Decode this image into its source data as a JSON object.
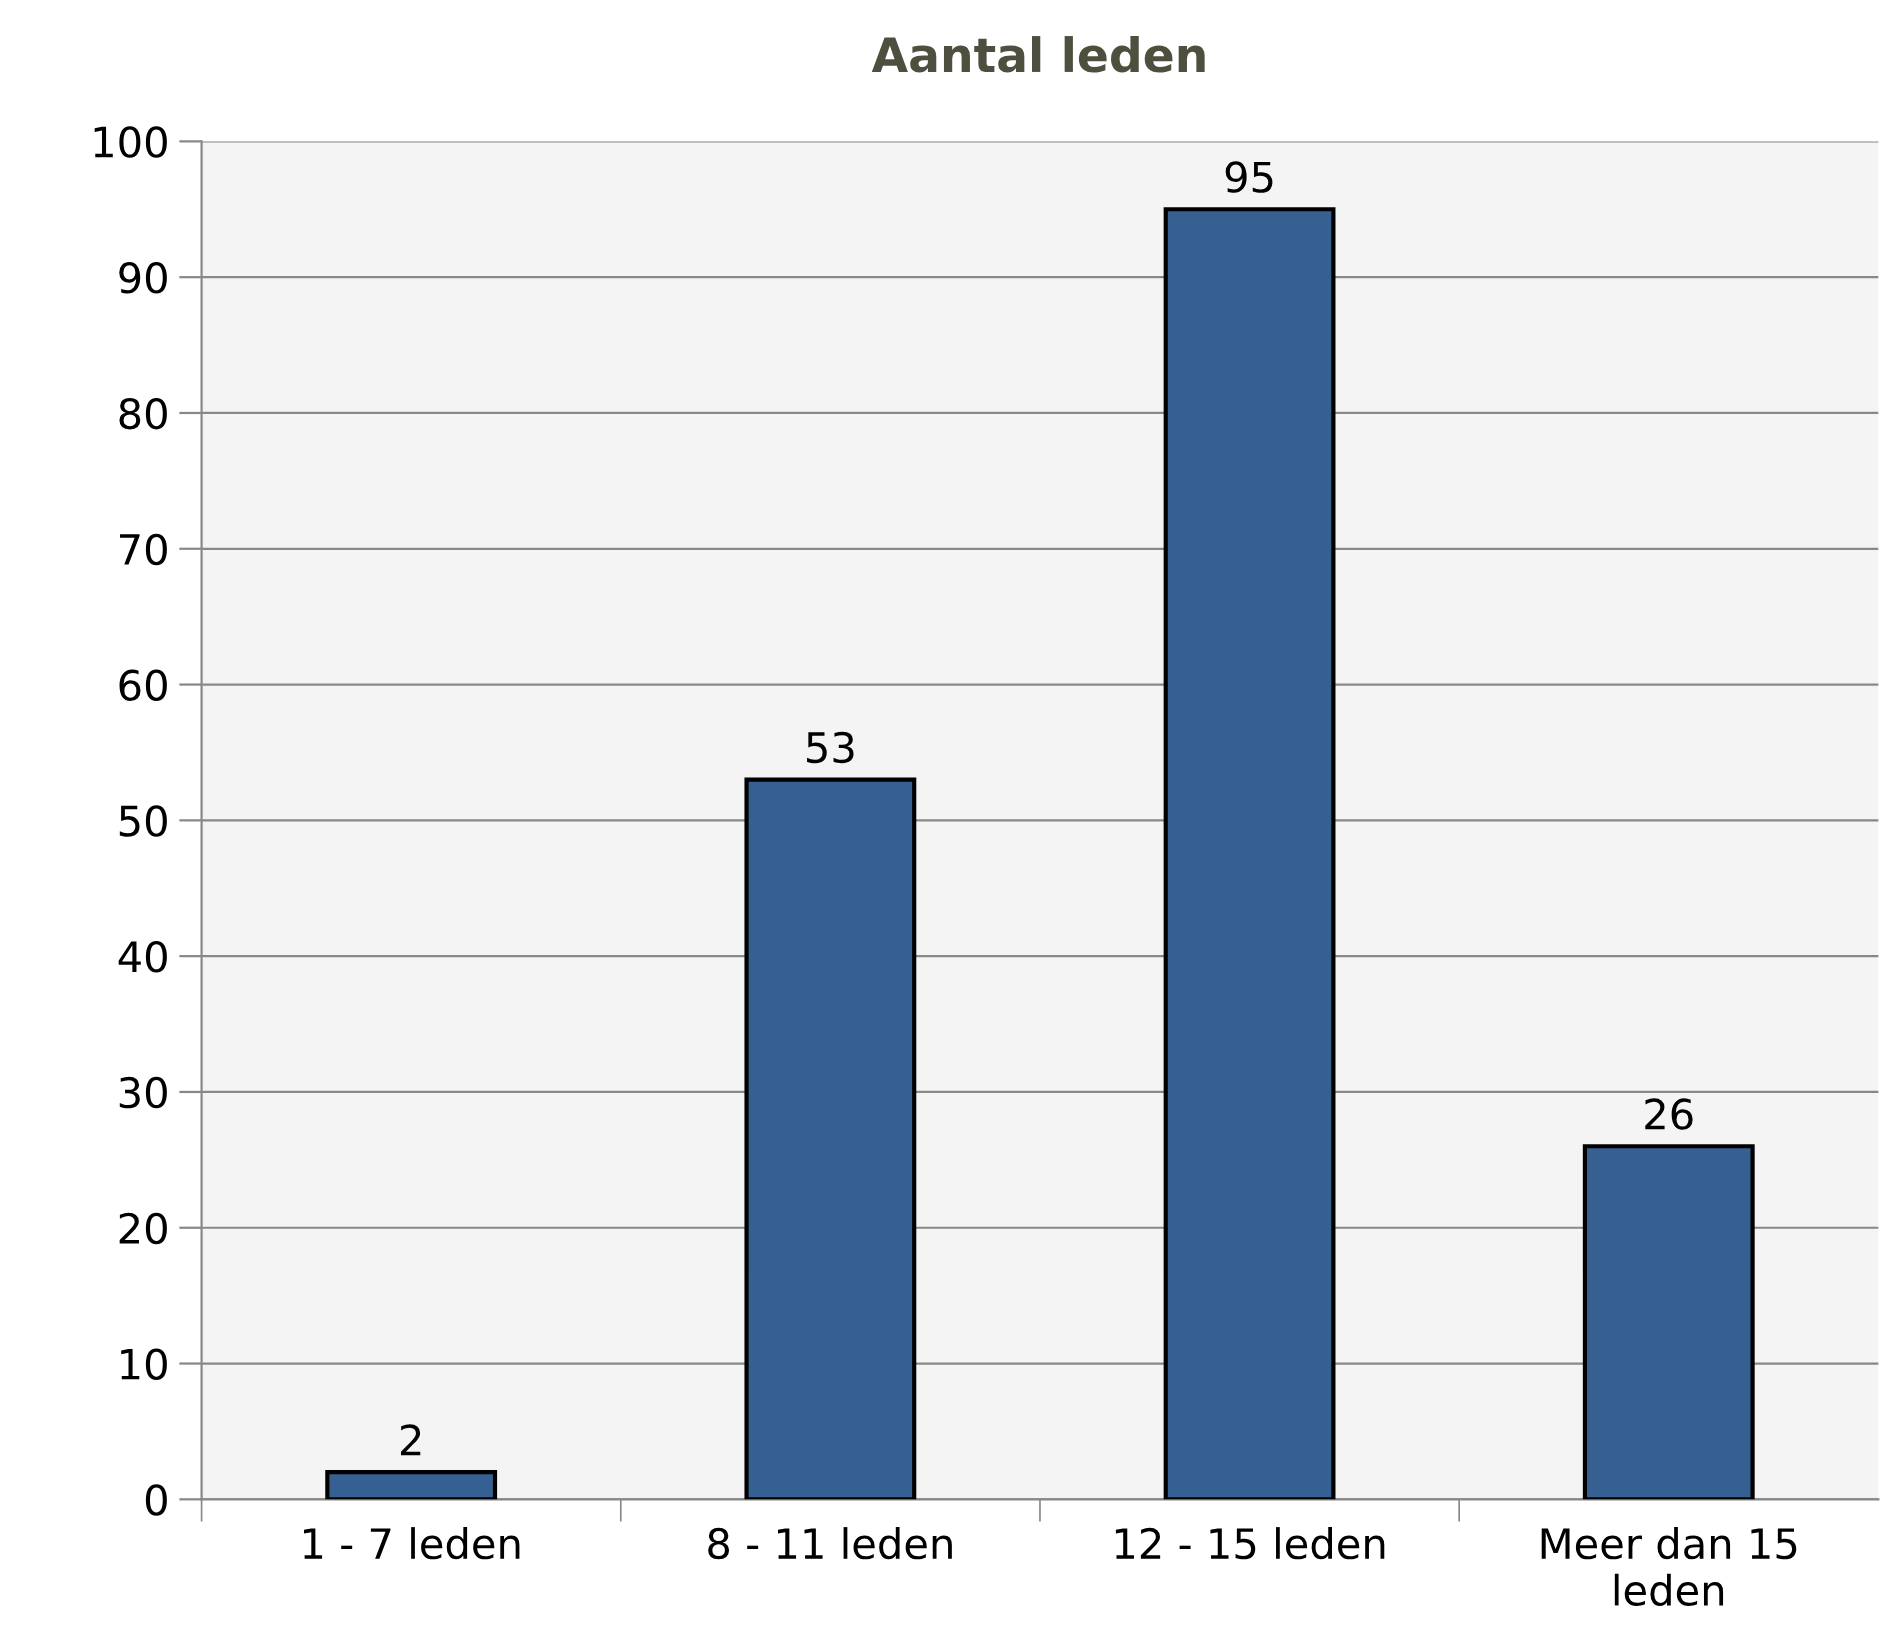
{
  "chart_data": {
    "type": "bar",
    "title": "Aantal leden",
    "categories": [
      "1 - 7 leden",
      "8 - 11 leden",
      "12 - 15 leden",
      "Meer dan 15\nleden"
    ],
    "values": [
      2,
      53,
      95,
      26
    ],
    "color": "#366092",
    "ylim": [
      0,
      100
    ],
    "yticks": [
      0,
      10,
      20,
      30,
      40,
      50,
      60,
      70,
      80,
      90,
      100
    ],
    "grid": "y",
    "data_labels": true,
    "legend": false
  }
}
